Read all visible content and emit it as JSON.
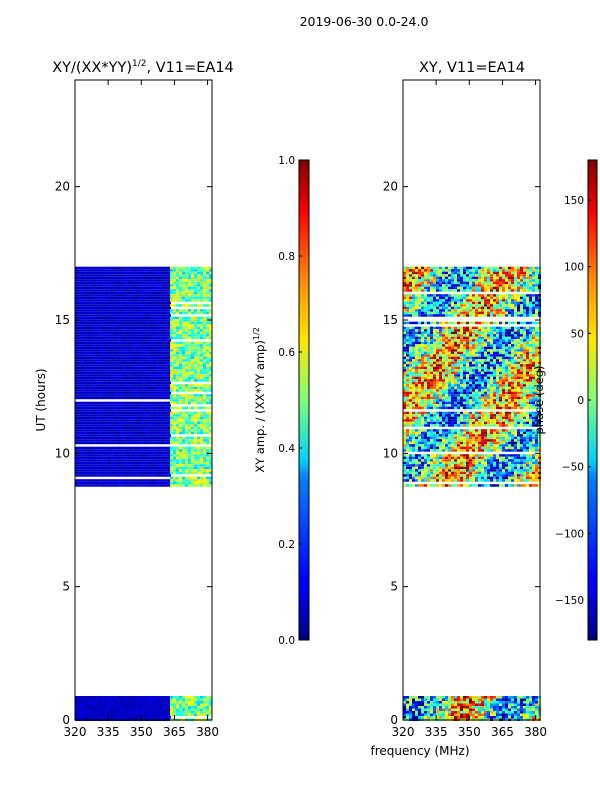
{
  "figure_title": "2019-06-30 0.0-24.0",
  "chart_data": [
    {
      "type": "heatmap",
      "title": "XY/(XX*YY)",
      "title_exponent": "1/2",
      "title_suffix": ", V11=EA14",
      "xlabel": "",
      "ylabel": "UT (hours)",
      "xlim": [
        320,
        382
      ],
      "ylim": [
        0,
        24
      ],
      "x_ticks": [
        320,
        335,
        350,
        365,
        380
      ],
      "y_ticks": [
        0,
        5,
        10,
        15,
        20
      ],
      "colorbar": {
        "label": "XY amp. / (XX*YY amp)",
        "label_exponent": "1/2",
        "min": 0.0,
        "max": 1.0,
        "ticks": [
          "0.0",
          "0.2",
          "0.4",
          "0.6",
          "0.8",
          "1.0"
        ],
        "tick_values": [
          0.0,
          0.2,
          0.4,
          0.6,
          0.8,
          1.0
        ],
        "colormap": "jet"
      },
      "data_blocks": [
        {
          "freq": [
            320,
            363
          ],
          "time": [
            8.8,
            17.0
          ],
          "value": 0.05
        },
        {
          "freq": [
            363,
            382
          ],
          "time": [
            8.8,
            17.0
          ],
          "value": 0.42
        },
        {
          "freq": [
            320,
            363
          ],
          "time": [
            0.0,
            0.9
          ],
          "value": 0.05
        },
        {
          "freq": [
            363,
            382
          ],
          "time": [
            0.0,
            0.9
          ],
          "value": 0.42
        }
      ]
    },
    {
      "type": "heatmap",
      "title": "XY, V11=EA14",
      "xlabel": "frequency (MHz)",
      "ylabel": "",
      "xlim": [
        320,
        382
      ],
      "ylim": [
        0,
        24
      ],
      "x_ticks": [
        320,
        335,
        350,
        365,
        380
      ],
      "y_ticks": [
        0,
        5,
        10,
        15,
        20
      ],
      "colorbar": {
        "label": "phase (deg)",
        "min": -180,
        "max": 180,
        "ticks": [
          "−150",
          "−100",
          "−50",
          "0",
          "50",
          "100",
          "150"
        ],
        "tick_values": [
          -150,
          -100,
          -50,
          0,
          50,
          100,
          150
        ],
        "colormap": "jet"
      },
      "data_blocks": [
        {
          "freq": [
            320,
            382
          ],
          "time": [
            8.8,
            17.0
          ],
          "value": "mixed phase"
        },
        {
          "freq": [
            320,
            382
          ],
          "time": [
            0.0,
            0.9
          ],
          "value": "mixed phase"
        }
      ]
    }
  ]
}
